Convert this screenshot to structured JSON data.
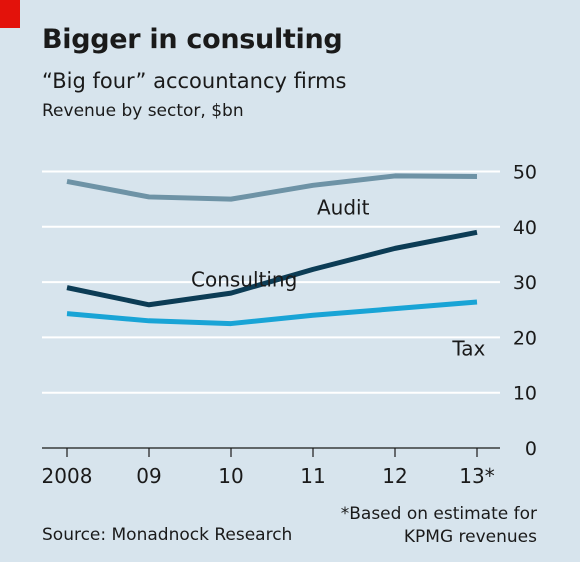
{
  "header": {
    "title": "Bigger in consulting",
    "subtitle": "“Big four” accountancy firms",
    "units": "Revenue by sector, $bn"
  },
  "footer": {
    "source": "Source: Monadnock Research",
    "footnote_line1": "*Based on estimate for",
    "footnote_line2": "KPMG revenues"
  },
  "colors": {
    "background": "#d7e4ed",
    "accent": "#e3120b",
    "audit": "#6e93a6",
    "consulting": "#0c3c55",
    "tax": "#19a4d6",
    "grid": "#ffffff"
  },
  "chart_data": {
    "type": "line",
    "title": "Bigger in consulting",
    "subtitle": "“Big four” accountancy firms",
    "ylabel": "Revenue by sector, $bn",
    "x": [
      "2008",
      "09",
      "10",
      "11",
      "12",
      "13*"
    ],
    "ylim": [
      0,
      50
    ],
    "yticks": [
      0,
      10,
      20,
      30,
      40,
      50
    ],
    "grid": true,
    "series": [
      {
        "name": "Audit",
        "values": [
          48.2,
          45.4,
          45.0,
          47.5,
          49.2,
          49.1
        ]
      },
      {
        "name": "Consulting",
        "values": [
          29.0,
          25.9,
          28.0,
          32.3,
          36.1,
          39.0
        ]
      },
      {
        "name": "Tax",
        "values": [
          24.3,
          23.0,
          22.5,
          24.0,
          25.2,
          26.4
        ]
      }
    ]
  }
}
